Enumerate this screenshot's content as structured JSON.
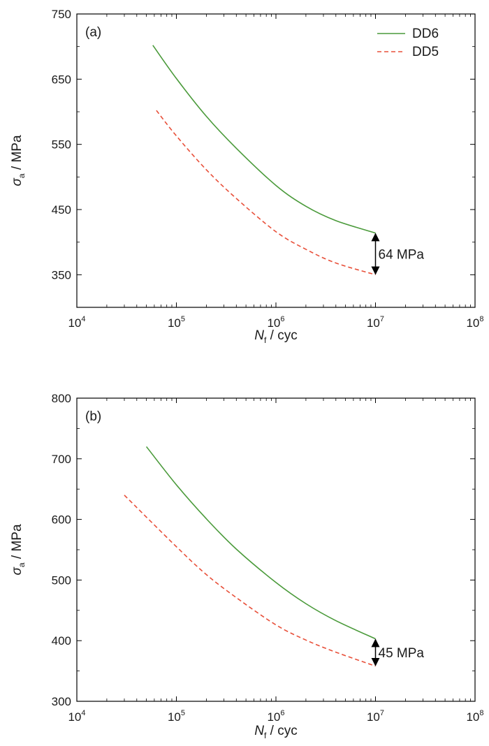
{
  "chart_data": [
    {
      "type": "line",
      "panel_label": "(a)",
      "x_scale": "log",
      "xlim": [
        10000,
        100000000
      ],
      "x_ticks": [
        {
          "value": 10000,
          "base": "10",
          "exp": "4"
        },
        {
          "value": 100000,
          "base": "10",
          "exp": "5"
        },
        {
          "value": 1000000,
          "base": "10",
          "exp": "6"
        },
        {
          "value": 10000000,
          "base": "10",
          "exp": "7"
        },
        {
          "value": 100000000,
          "base": "10",
          "exp": "8"
        }
      ],
      "xlabel": {
        "var": "N",
        "sub": "f",
        "rest": " / cyc"
      },
      "ylabel": {
        "var": "σ",
        "sub": "a",
        "rest": " / MPa"
      },
      "ylim": [
        300,
        750
      ],
      "y_ticks": [
        350,
        450,
        550,
        650,
        750
      ],
      "legend_position": "top-right",
      "series": [
        {
          "name": "DD6",
          "color": "#4a9a3a",
          "style": "solid",
          "points": [
            [
              58000,
              702
            ],
            [
              100000,
              651
            ],
            [
              200000,
              593
            ],
            [
              400000,
              544
            ],
            [
              1000000,
              487
            ],
            [
              2000000,
              455
            ],
            [
              4000000,
              433
            ],
            [
              10000000,
              414
            ]
          ]
        },
        {
          "name": "DD5",
          "color": "#e8503a",
          "style": "dashed",
          "points": [
            [
              63000,
              602
            ],
            [
              100000,
              563
            ],
            [
              200000,
              511
            ],
            [
              400000,
              467
            ],
            [
              1000000,
              416
            ],
            [
              2000000,
              389
            ],
            [
              4000000,
              368
            ],
            [
              10000000,
              350
            ]
          ]
        }
      ],
      "annotation": {
        "text": "64 MPa",
        "x": 10000000,
        "y1": 414,
        "y2": 350
      }
    },
    {
      "type": "line",
      "panel_label": "(b)",
      "x_scale": "log",
      "xlim": [
        10000,
        100000000
      ],
      "x_ticks": [
        {
          "value": 10000,
          "base": "10",
          "exp": "4"
        },
        {
          "value": 100000,
          "base": "10",
          "exp": "5"
        },
        {
          "value": 1000000,
          "base": "10",
          "exp": "6"
        },
        {
          "value": 10000000,
          "base": "10",
          "exp": "7"
        },
        {
          "value": 100000000,
          "base": "10",
          "exp": "8"
        }
      ],
      "xlabel": {
        "var": "N",
        "sub": "f",
        "rest": " / cyc"
      },
      "ylabel": {
        "var": "σ",
        "sub": "a",
        "rest": " / MPa"
      },
      "ylim": [
        300,
        800
      ],
      "y_ticks": [
        300,
        400,
        500,
        600,
        700,
        800
      ],
      "series": [
        {
          "name": "DD6",
          "color": "#4a9a3a",
          "style": "solid",
          "points": [
            [
              50000,
              720
            ],
            [
              100000,
              657
            ],
            [
              200000,
              601
            ],
            [
              400000,
              551
            ],
            [
              1000000,
              496
            ],
            [
              2000000,
              461
            ],
            [
              4000000,
              433
            ],
            [
              10000000,
              403
            ]
          ]
        },
        {
          "name": "DD5",
          "color": "#e8503a",
          "style": "dashed",
          "points": [
            [
              30000,
              640
            ],
            [
              100000,
              555
            ],
            [
              200000,
              509
            ],
            [
              400000,
              471
            ],
            [
              1000000,
              426
            ],
            [
              2000000,
              401
            ],
            [
              4000000,
              381
            ],
            [
              10000000,
              358
            ]
          ]
        }
      ],
      "annotation": {
        "text": "45 MPa",
        "x": 10000000,
        "y1": 403,
        "y2": 358
      }
    }
  ]
}
